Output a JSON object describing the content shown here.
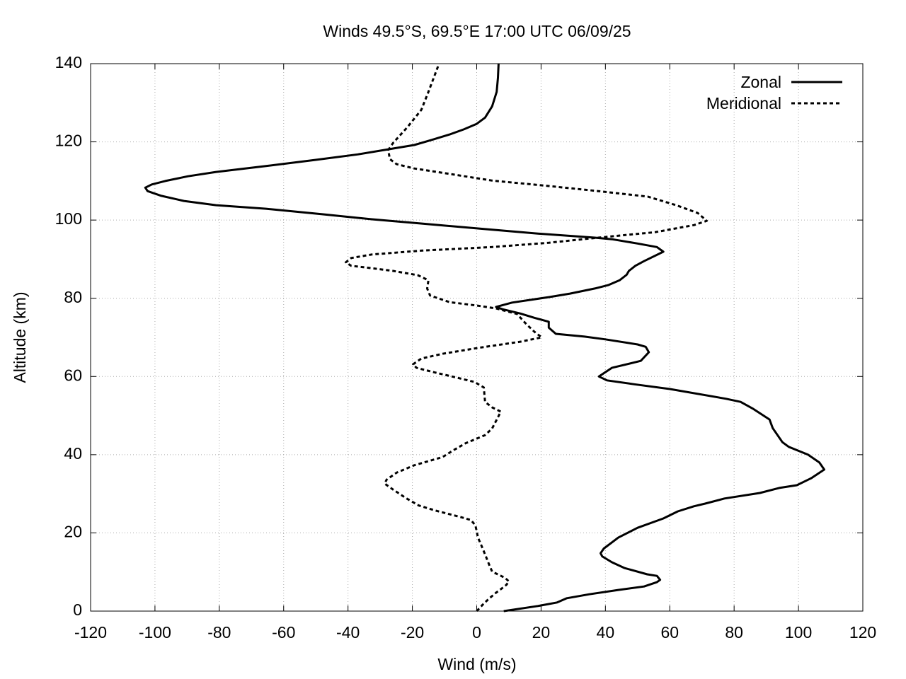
{
  "chart_data": {
    "type": "line",
    "title": "Winds 49.5°S, 69.5°E 17:00 UTC 06/09/25",
    "xlabel": "Wind (m/s)",
    "ylabel": "Altitude (km)",
    "xlim": [
      -120,
      120
    ],
    "ylim": [
      0,
      140
    ],
    "xticks": [
      -120,
      -100,
      -80,
      -60,
      -40,
      -20,
      0,
      20,
      40,
      60,
      80,
      100,
      120
    ],
    "yticks": [
      0,
      20,
      40,
      60,
      80,
      100,
      120,
      140
    ],
    "grid": true,
    "legend": "upper right",
    "series": [
      {
        "name": "Zonal",
        "color": "#000000",
        "dashed": false,
        "x": [
          8.4,
          19,
          25,
          28,
          35,
          44,
          52,
          56,
          57,
          56,
          53,
          46,
          42,
          39,
          38.5,
          39.5,
          44,
          50,
          58,
          62.5,
          67.5,
          71,
          77,
          88,
          94,
          99.5,
          104,
          108,
          106.5,
          103,
          97,
          95,
          92,
          91,
          86,
          82,
          77.5,
          60,
          49,
          40.5,
          38,
          42,
          51,
          53.5,
          52.5,
          50,
          40,
          33.5,
          24.6,
          22.4,
          22.4,
          18,
          13.6,
          8,
          6,
          11,
          22.4,
          29,
          36.7,
          41,
          44.4,
          46.6,
          47.3,
          49.3,
          52,
          58,
          56,
          50,
          42,
          36.7,
          18,
          2.6,
          -17,
          -32.6,
          -48,
          -65.5,
          -81,
          -91,
          -98,
          -102.3,
          -103,
          -101,
          -96.8,
          -89.7,
          -81,
          -65.5,
          -50,
          -37,
          -26,
          -19.4,
          -14,
          -8.4,
          -4,
          0,
          2.6,
          4.8,
          6.2,
          6.6,
          6.8
        ],
        "y": [
          0,
          1.3,
          2.2,
          3.3,
          4.3,
          5.4,
          6.3,
          7.4,
          8,
          9,
          9.4,
          11,
          12.5,
          14,
          14.8,
          16,
          18.8,
          21.3,
          23.7,
          25.5,
          26.8,
          27.5,
          28.8,
          30.2,
          31.5,
          32.2,
          34,
          36.2,
          38,
          40,
          42,
          43.2,
          46.8,
          49,
          51.7,
          53.5,
          54.3,
          56.8,
          58,
          59,
          60,
          62.2,
          64,
          66.2,
          67.6,
          68.2,
          69.5,
          70.2,
          70.9,
          72.5,
          74,
          75,
          76.1,
          77.2,
          77.8,
          78.9,
          80.3,
          81.2,
          82.5,
          83.4,
          84.6,
          86,
          87,
          88.3,
          89.5,
          91.9,
          93.1,
          94,
          95.1,
          95.5,
          96.6,
          97.7,
          99.1,
          100.2,
          101.5,
          102.9,
          103.8,
          104.9,
          106.2,
          107.4,
          108.3,
          109.1,
          110,
          111.2,
          112.3,
          113.8,
          115.4,
          116.8,
          118.3,
          119.2,
          120.5,
          121.9,
          123.2,
          124.6,
          126.2,
          129.1,
          132.8,
          136.4,
          140
        ]
      },
      {
        "name": "Meridional",
        "color": "#000000",
        "dashed": true,
        "x": [
          0,
          1.8,
          3.7,
          6,
          7.5,
          9.2,
          10,
          8.8,
          4.8,
          4,
          3,
          1.8,
          0.4,
          -0.4,
          -1.8,
          -5.7,
          -12.8,
          -18,
          -22,
          -26,
          -28.6,
          -28,
          -24.9,
          -19.4,
          -10.6,
          -7.3,
          -3.5,
          2.6,
          4.8,
          7.5,
          4.8,
          2.6,
          2.2,
          -0.7,
          -6.2,
          -12.8,
          -18.7,
          -19.8,
          -17.2,
          -10.6,
          0.4,
          13.6,
          20.2,
          18,
          15.4,
          12.5,
          6,
          0.4,
          -8.4,
          -14.5,
          -15.4,
          -15,
          -18.3,
          -26,
          -34.8,
          -39,
          -40.7,
          -39,
          -32.6,
          -17,
          4.8,
          22.4,
          37.8,
          55.4,
          67.5,
          71.5,
          68.7,
          62,
          53.2,
          37.8,
          22.4,
          4.8,
          -8.4,
          -19.4,
          -24.9,
          -27,
          -27.5,
          -26,
          -21.6,
          -17.2,
          -15,
          -11.7
        ],
        "y": [
          0,
          1.6,
          3.1,
          4.7,
          5.6,
          6.7,
          7.6,
          8.5,
          10.1,
          11.6,
          13.7,
          16.1,
          18.8,
          21.9,
          23.3,
          24.2,
          25.7,
          27,
          28.9,
          31.1,
          32.6,
          33.6,
          35.4,
          37.3,
          39.4,
          41.1,
          42.9,
          45,
          46.7,
          51,
          52.1,
          53.5,
          57.2,
          58.6,
          59.7,
          61,
          62.2,
          63.1,
          64.6,
          65.8,
          67.3,
          68.9,
          70,
          71.4,
          73.4,
          76,
          77.4,
          78.1,
          79,
          80.7,
          82.5,
          84.6,
          85.9,
          87,
          87.9,
          88.3,
          89.2,
          90.3,
          91.2,
          92.2,
          93.1,
          94.2,
          95.5,
          96.9,
          98.7,
          99.8,
          101.8,
          103.8,
          106,
          107.4,
          108.7,
          110.1,
          111.8,
          113.2,
          114.3,
          115.6,
          117.9,
          119.7,
          123.7,
          128.2,
          132.8,
          140
        ]
      }
    ]
  }
}
